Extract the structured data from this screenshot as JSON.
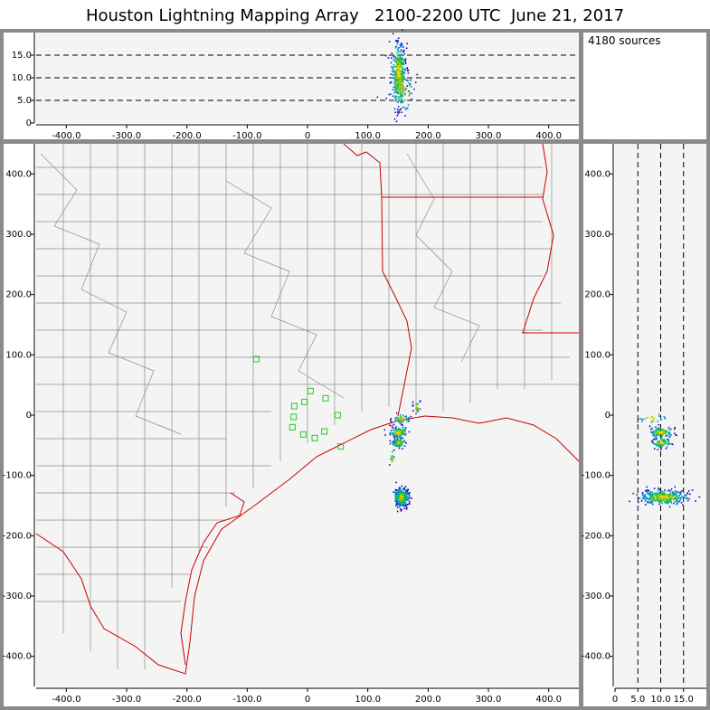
{
  "header": {
    "title": "Houston Lightning Mapping Array   2100-2200 UTC  June 21, 2017",
    "source_count": "4180 sources"
  },
  "chart_data": [
    {
      "type": "scatter",
      "panel": "altitude-vs-east-west",
      "xlim": [
        -450,
        450
      ],
      "ylim": [
        0,
        20
      ],
      "x_ticks": [
        "-400.0",
        "-300.0",
        "-200.0",
        "-100.0",
        "0",
        "100.0",
        "200.0",
        "300.0",
        "400.0"
      ],
      "y_ticks": [
        "0",
        "5.0",
        "10.0",
        "15.0"
      ],
      "reference_lines_y": [
        5,
        10,
        15
      ],
      "clusters": [
        {
          "x": 150,
          "y": 11,
          "sx": 6,
          "sy": 3.5,
          "n": 380
        },
        {
          "x": 155,
          "y": 8,
          "sx": 10,
          "sy": 2.5,
          "n": 80
        }
      ]
    },
    {
      "type": "scatter",
      "panel": "plan-view",
      "xlim": [
        -450,
        450
      ],
      "ylim": [
        -450,
        450
      ],
      "x_ticks": [
        "-400.0",
        "-300.0",
        "-200.0",
        "-100.0",
        "0",
        "100.0",
        "200.0",
        "300.0",
        "400.0"
      ],
      "y_ticks": [
        "-400.0",
        "-300.0",
        "-200.0",
        "-100.0",
        "0",
        "100.0",
        "200.0",
        "300.0",
        "400.0"
      ],
      "clusters": [
        {
          "x": 155,
          "y": -135,
          "sx": 6,
          "sy": 7,
          "n": 330
        },
        {
          "x": 150,
          "y": -28,
          "sx": 7,
          "sy": 5,
          "n": 110
        },
        {
          "x": 150,
          "y": -45,
          "sx": 6,
          "sy": 4,
          "n": 90
        },
        {
          "x": 155,
          "y": -5,
          "sx": 7,
          "sy": 4,
          "n": 50
        },
        {
          "x": 180,
          "y": 15,
          "sx": 3,
          "sy": 5,
          "n": 25
        },
        {
          "x": 140,
          "y": -70,
          "sx": 2,
          "sy": 8,
          "n": 15
        }
      ],
      "stations": [
        [
          -85,
          93
        ],
        [
          -22,
          15
        ],
        [
          -23,
          -3
        ],
        [
          -25,
          -20
        ],
        [
          -5,
          22
        ],
        [
          5,
          40
        ],
        [
          30,
          28
        ],
        [
          -7,
          -32
        ],
        [
          12,
          -38
        ],
        [
          28,
          -27
        ],
        [
          50,
          0
        ],
        [
          55,
          -52
        ]
      ]
    },
    {
      "type": "scatter",
      "panel": "north-south-vs-altitude",
      "xlim": [
        0,
        20
      ],
      "ylim": [
        -450,
        450
      ],
      "x_ticks": [
        "0",
        "5.0",
        "10.0",
        "15.0"
      ],
      "y_ticks": [
        "-400.0",
        "-300.0",
        "-200.0",
        "-100.0",
        "0",
        "100.0",
        "200.0",
        "300.0",
        "400.0"
      ],
      "reference_lines_x": [
        5,
        10,
        15
      ],
      "clusters": [
        {
          "x": 10.5,
          "y": -135,
          "sx": 2.5,
          "sy": 6,
          "n": 330
        },
        {
          "x": 10,
          "y": -28,
          "sx": 1.2,
          "sy": 5,
          "n": 120
        },
        {
          "x": 10,
          "y": -45,
          "sx": 1.0,
          "sy": 4,
          "n": 80
        },
        {
          "x": 8,
          "y": -5,
          "sx": 1.5,
          "sy": 5,
          "n": 25
        }
      ]
    }
  ]
}
